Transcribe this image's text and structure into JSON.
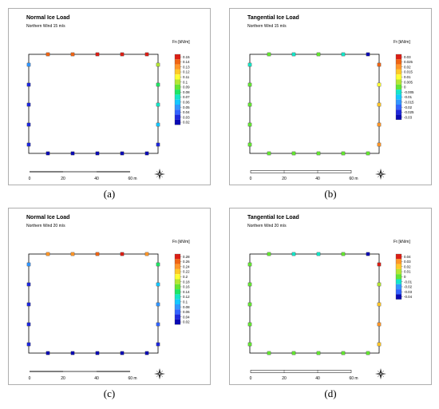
{
  "chart_data": [
    {
      "type": "heatmap",
      "panel_label": "(a)",
      "title": "Normal Ice Load",
      "subtitle": "Northern Wind 15 m/s",
      "legend_label": "Fn [kN/m]",
      "legend_values": [
        0.15,
        0.14,
        0.13,
        0.12,
        0.11,
        0.1,
        0.09,
        0.08,
        0.07,
        0.06,
        0.05,
        0.04,
        0.03,
        0.02
      ],
      "legend_ticks": [
        "0.15",
        "0.14",
        "0.13",
        "0.12",
        "0.11",
        "0.1",
        "0.09",
        "0.08",
        "0.07",
        "0.06",
        "0.05",
        "0.04",
        "0.03",
        "0.02"
      ],
      "scale_ticks": [
        "0",
        "20",
        "40",
        "60 m"
      ],
      "points": {
        "top": [
          0.14,
          0.14,
          0.15,
          0.15,
          0.15
        ],
        "right": [
          0.1,
          0.08,
          0.07,
          0.06,
          0.03
        ],
        "bottom": [
          0.02,
          0.02,
          0.02,
          0.02,
          0.02
        ],
        "left": [
          0.05,
          0.03,
          0.03,
          0.03,
          0.03
        ]
      }
    },
    {
      "type": "heatmap",
      "panel_label": "(b)",
      "title": "Tangential Ice Load",
      "subtitle": "Northern Wind 15 m/s",
      "legend_label": "Fτ [kN/m]",
      "legend_values": [
        0.03,
        0.025,
        0.02,
        0.015,
        0.01,
        0.005,
        0,
        -0.005,
        -0.01,
        -0.015,
        -0.02,
        -0.025,
        -0.03
      ],
      "legend_ticks": [
        "0.03",
        "0.025",
        "0.02",
        "0.015",
        "0.01",
        "0.005",
        "0",
        "-0.005",
        "-0.01",
        "-0.015",
        "-0.02",
        "-0.025",
        "-0.03"
      ],
      "scale_ticks": [
        "0",
        "20",
        "40",
        "60 m"
      ],
      "points": {
        "top": [
          0.0,
          -0.005,
          0.0,
          -0.005,
          -0.03
        ],
        "right": [
          0.025,
          0.01,
          0.015,
          0.02,
          0.02
        ],
        "bottom": [
          0.0,
          0.0,
          0.0,
          0.0,
          0.0
        ],
        "left": [
          -0.005,
          0.0,
          0.0,
          0.0,
          0.0
        ]
      }
    },
    {
      "type": "heatmap",
      "panel_label": "(c)",
      "title": "Normal Ice Load",
      "subtitle": "Northern Wind 20 m/s",
      "legend_label": "Fn [kN/m]",
      "legend_values": [
        0.28,
        0.26,
        0.24,
        0.22,
        0.2,
        0.18,
        0.16,
        0.14,
        0.12,
        0.1,
        0.08,
        0.06,
        0.04,
        0.02
      ],
      "legend_ticks": [
        "0.28",
        "0.26",
        "0.24",
        "0.22",
        "0.2",
        "0.18",
        "0.16",
        "0.14",
        "0.12",
        "0.1",
        "0.08",
        "0.06",
        "0.04",
        "0.02"
      ],
      "scale_ticks": [
        "0",
        "20",
        "40",
        "60 m"
      ],
      "points": {
        "top": [
          0.24,
          0.24,
          0.26,
          0.28,
          0.24
        ],
        "right": [
          0.14,
          0.1,
          0.08,
          0.06,
          0.04
        ],
        "bottom": [
          0.02,
          0.02,
          0.02,
          0.02,
          0.02
        ],
        "left": [
          0.08,
          0.04,
          0.04,
          0.04,
          0.04
        ]
      }
    },
    {
      "type": "heatmap",
      "panel_label": "(d)",
      "title": "Tangential Ice Load",
      "subtitle": "Northern Wind 20 m/s",
      "legend_label": "Fτ [kN/m]",
      "legend_values": [
        0.04,
        0.03,
        0.02,
        0.01,
        0,
        -0.01,
        -0.02,
        -0.03,
        -0.04
      ],
      "legend_ticks": [
        "0.04",
        "0.03",
        "0.02",
        "0.01",
        "0",
        "-0.01",
        "-0.02",
        "-0.03",
        "-0.04"
      ],
      "scale_ticks": [
        "0",
        "20",
        "40",
        "60 m"
      ],
      "points": {
        "top": [
          0.0,
          -0.01,
          -0.01,
          0.0,
          -0.04
        ],
        "right": [
          0.04,
          0.01,
          0.02,
          0.03,
          0.02
        ],
        "bottom": [
          0.0,
          0.0,
          0.0,
          0.0,
          0.0
        ],
        "left": [
          0.0,
          0.0,
          0.0,
          0.0,
          0.0
        ]
      }
    }
  ],
  "colors": {
    "palette": [
      "#0a0ab4",
      "#1e28dc",
      "#3264ff",
      "#3296ff",
      "#14c8ff",
      "#14e6c8",
      "#1ee664",
      "#64e632",
      "#b4e632",
      "#ffff32",
      "#ffc828",
      "#ff9628",
      "#f06414",
      "#dc1e14"
    ]
  }
}
